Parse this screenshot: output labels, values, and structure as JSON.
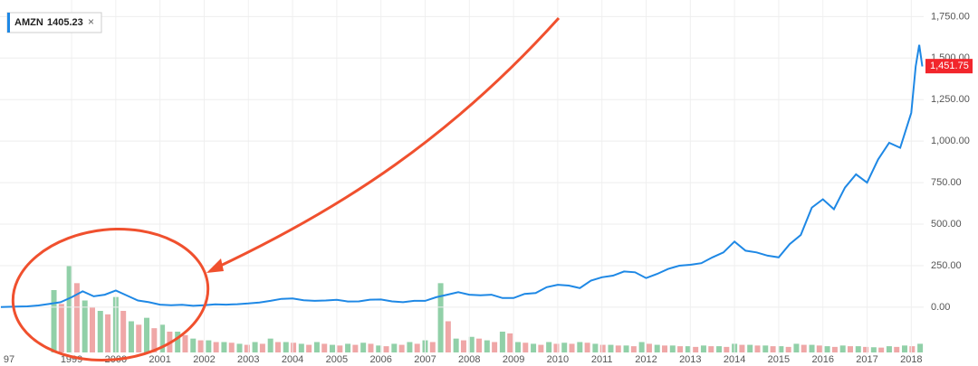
{
  "chart_data": [
    {
      "type": "line",
      "series": [
        {
          "name": "AMZN",
          "color": "#1e88e5",
          "x": [
            1997.4,
            1997.75,
            1998.0,
            1998.25,
            1998.5,
            1998.75,
            1999.0,
            1999.25,
            1999.5,
            1999.75,
            2000.0,
            2000.25,
            2000.5,
            2000.75,
            2001.0,
            2001.25,
            2001.5,
            2001.75,
            2002.0,
            2002.25,
            2002.5,
            2002.75,
            2003.0,
            2003.25,
            2003.5,
            2003.75,
            2004.0,
            2004.25,
            2004.5,
            2004.75,
            2005.0,
            2005.25,
            2005.5,
            2005.75,
            2006.0,
            2006.25,
            2006.5,
            2006.75,
            2007.0,
            2007.25,
            2007.5,
            2007.75,
            2008.0,
            2008.25,
            2008.5,
            2008.75,
            2009.0,
            2009.25,
            2009.5,
            2009.75,
            2010.0,
            2010.25,
            2010.5,
            2010.75,
            2011.0,
            2011.25,
            2011.5,
            2011.75,
            2012.0,
            2012.25,
            2012.5,
            2012.75,
            2013.0,
            2013.25,
            2013.5,
            2013.75,
            2014.0,
            2014.25,
            2014.5,
            2014.75,
            2015.0,
            2015.25,
            2015.5,
            2015.75,
            2016.0,
            2016.25,
            2016.5,
            2016.75,
            2017.0,
            2017.25,
            2017.5,
            2017.75,
            2018.0,
            2018.1,
            2018.18,
            2018.25
          ],
          "values": [
            1,
            3,
            5,
            10,
            20,
            30,
            60,
            95,
            65,
            75,
            100,
            70,
            40,
            30,
            15,
            12,
            14,
            8,
            12,
            17,
            15,
            18,
            22,
            28,
            38,
            50,
            52,
            42,
            38,
            40,
            44,
            34,
            35,
            45,
            46,
            35,
            30,
            38,
            38,
            60,
            75,
            90,
            75,
            72,
            75,
            55,
            55,
            80,
            85,
            120,
            135,
            130,
            115,
            160,
            180,
            190,
            215,
            210,
            175,
            200,
            230,
            250,
            255,
            265,
            300,
            330,
            395,
            340,
            330,
            310,
            300,
            380,
            435,
            600,
            650,
            590,
            720,
            800,
            750,
            890,
            990,
            960,
            1170,
            1450,
            1580,
            1450
          ]
        }
      ],
      "legend_value": 1405.23,
      "last_price": {
        "value": 1451.75,
        "label": "1,451.75"
      },
      "xlim": [
        1997.38,
        2018.28
      ],
      "xticks": [
        {
          "value": 1997,
          "label": "97"
        },
        1999,
        2000,
        2001,
        2002,
        2003,
        2004,
        2005,
        2006,
        2007,
        2008,
        2009,
        2010,
        2011,
        2012,
        2013,
        2014,
        2015,
        2016,
        2017,
        2018
      ],
      "ylim": [
        -300,
        1850
      ],
      "yticks": [
        {
          "value": 0,
          "label": "0.00"
        },
        {
          "value": 250,
          "label": "250.00"
        },
        {
          "value": 500,
          "label": "500.00"
        },
        {
          "value": 750,
          "label": "750.00"
        },
        {
          "value": 1000,
          "label": "1,000.00"
        },
        {
          "value": 1250,
          "label": "1,250.00"
        },
        {
          "value": 1500,
          "label": "1,500.00"
        },
        {
          "value": 1750,
          "label": "1,750.00"
        }
      ],
      "grid": true
    },
    {
      "type": "bar",
      "series": [
        {
          "color": "#6cc08b",
          "x": [
            1998.6,
            1998.95,
            1999.3,
            1999.65,
            2000.0,
            2000.35,
            2000.7,
            2001.05,
            2001.4,
            2001.75,
            2002.1,
            2002.45,
            2002.8,
            2003.15,
            2003.5,
            2003.85,
            2004.2,
            2004.55,
            2004.9,
            2005.25,
            2005.6,
            2005.95,
            2006.3,
            2006.65,
            2007.0,
            2007.35,
            2007.7,
            2008.05,
            2008.4,
            2008.75,
            2009.1,
            2009.45,
            2009.8,
            2010.15,
            2010.5,
            2010.85,
            2011.2,
            2011.55,
            2011.9,
            2012.25,
            2012.6,
            2012.95,
            2013.3,
            2013.65,
            2014.0,
            2014.35,
            2014.7,
            2015.05,
            2015.4,
            2015.75,
            2016.1,
            2016.45,
            2016.8,
            2017.15,
            2017.5,
            2017.85,
            2018.2
          ],
          "values": [
            180,
            250,
            150,
            120,
            160,
            90,
            100,
            80,
            60,
            40,
            35,
            30,
            25,
            30,
            40,
            30,
            25,
            30,
            22,
            25,
            28,
            20,
            25,
            30,
            35,
            200,
            40,
            45,
            35,
            60,
            30,
            25,
            30,
            28,
            30,
            25,
            22,
            20,
            30,
            22,
            20,
            18,
            20,
            18,
            25,
            22,
            20,
            18,
            25,
            22,
            18,
            20,
            18,
            15,
            18,
            20,
            25
          ]
        },
        {
          "color": "#e98a8a",
          "x": [
            1998.77,
            1999.12,
            1999.47,
            1999.82,
            2000.17,
            2000.52,
            2000.87,
            2001.22,
            2001.57,
            2001.92,
            2002.27,
            2002.62,
            2002.97,
            2003.32,
            2003.67,
            2004.02,
            2004.37,
            2004.72,
            2005.07,
            2005.42,
            2005.77,
            2006.12,
            2006.47,
            2006.82,
            2007.17,
            2007.52,
            2007.87,
            2008.22,
            2008.57,
            2008.92,
            2009.27,
            2009.62,
            2009.97,
            2010.32,
            2010.67,
            2011.02,
            2011.37,
            2011.72,
            2012.07,
            2012.42,
            2012.77,
            2013.12,
            2013.47,
            2013.82,
            2014.17,
            2014.52,
            2014.87,
            2015.22,
            2015.57,
            2015.92,
            2016.27,
            2016.62,
            2016.97,
            2017.32,
            2017.67,
            2018.02
          ],
          "values": [
            140,
            200,
            130,
            110,
            120,
            80,
            70,
            60,
            50,
            35,
            30,
            28,
            22,
            25,
            30,
            28,
            22,
            25,
            20,
            22,
            25,
            18,
            22,
            25,
            30,
            90,
            35,
            40,
            30,
            55,
            28,
            22,
            25,
            25,
            28,
            22,
            20,
            18,
            25,
            20,
            18,
            16,
            18,
            16,
            22,
            20,
            18,
            16,
            22,
            20,
            16,
            18,
            16,
            14,
            16,
            18
          ]
        }
      ],
      "xlim": [
        1997.38,
        2018.28
      ],
      "ylim": [
        0,
        300
      ]
    }
  ]
}
